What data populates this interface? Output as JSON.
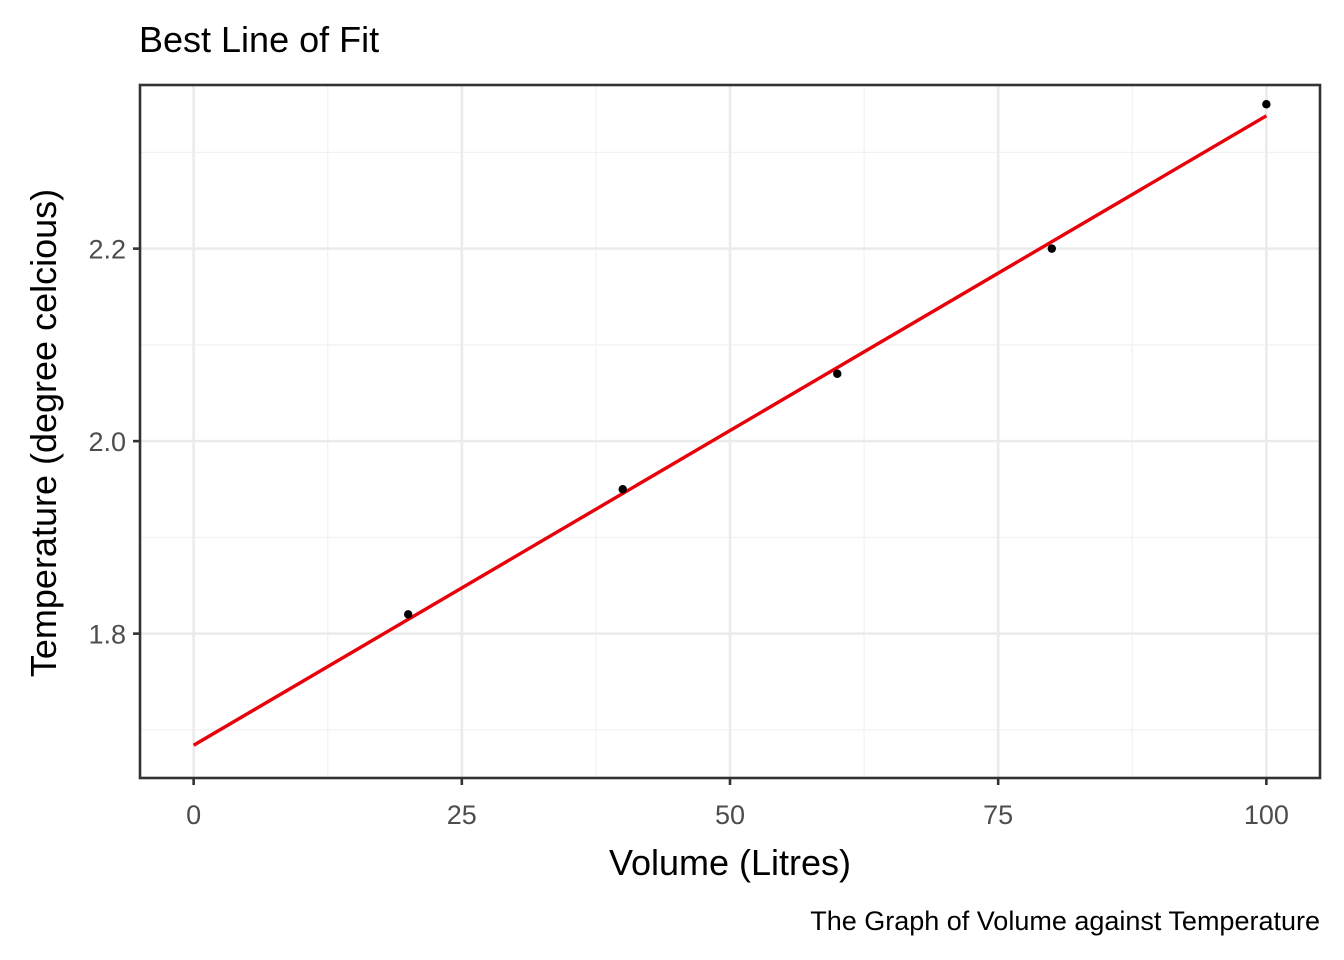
{
  "chart_data": {
    "type": "scatter",
    "title": "Best Line of Fit",
    "xlabel": "Volume (Litres)",
    "ylabel": "Temperature (degree celcious)",
    "caption": "The Graph of Volume against Temperature",
    "xlim": [
      -5,
      105
    ],
    "ylim": [
      1.65,
      2.37
    ],
    "x_ticks": [
      0,
      25,
      50,
      75,
      100
    ],
    "x_tick_labels": [
      "0",
      "25",
      "50",
      "75",
      "100"
    ],
    "y_ticks": [
      1.8,
      2.0,
      2.2
    ],
    "y_tick_labels": [
      "1.8",
      "2.0",
      "2.2"
    ],
    "x_minor": [
      12.5,
      37.5,
      62.5,
      87.5
    ],
    "y_minor": [
      1.7,
      1.9,
      2.1,
      2.3
    ],
    "grid": true,
    "series": [
      {
        "type": "scatter",
        "x": [
          20,
          40,
          60,
          80,
          100
        ],
        "y": [
          1.82,
          1.95,
          2.07,
          2.2,
          2.35
        ],
        "color": "#000000"
      }
    ],
    "fit_line": {
      "x": [
        0,
        100
      ],
      "y": [
        1.684,
        2.338
      ],
      "color": "#e8000b"
    }
  }
}
